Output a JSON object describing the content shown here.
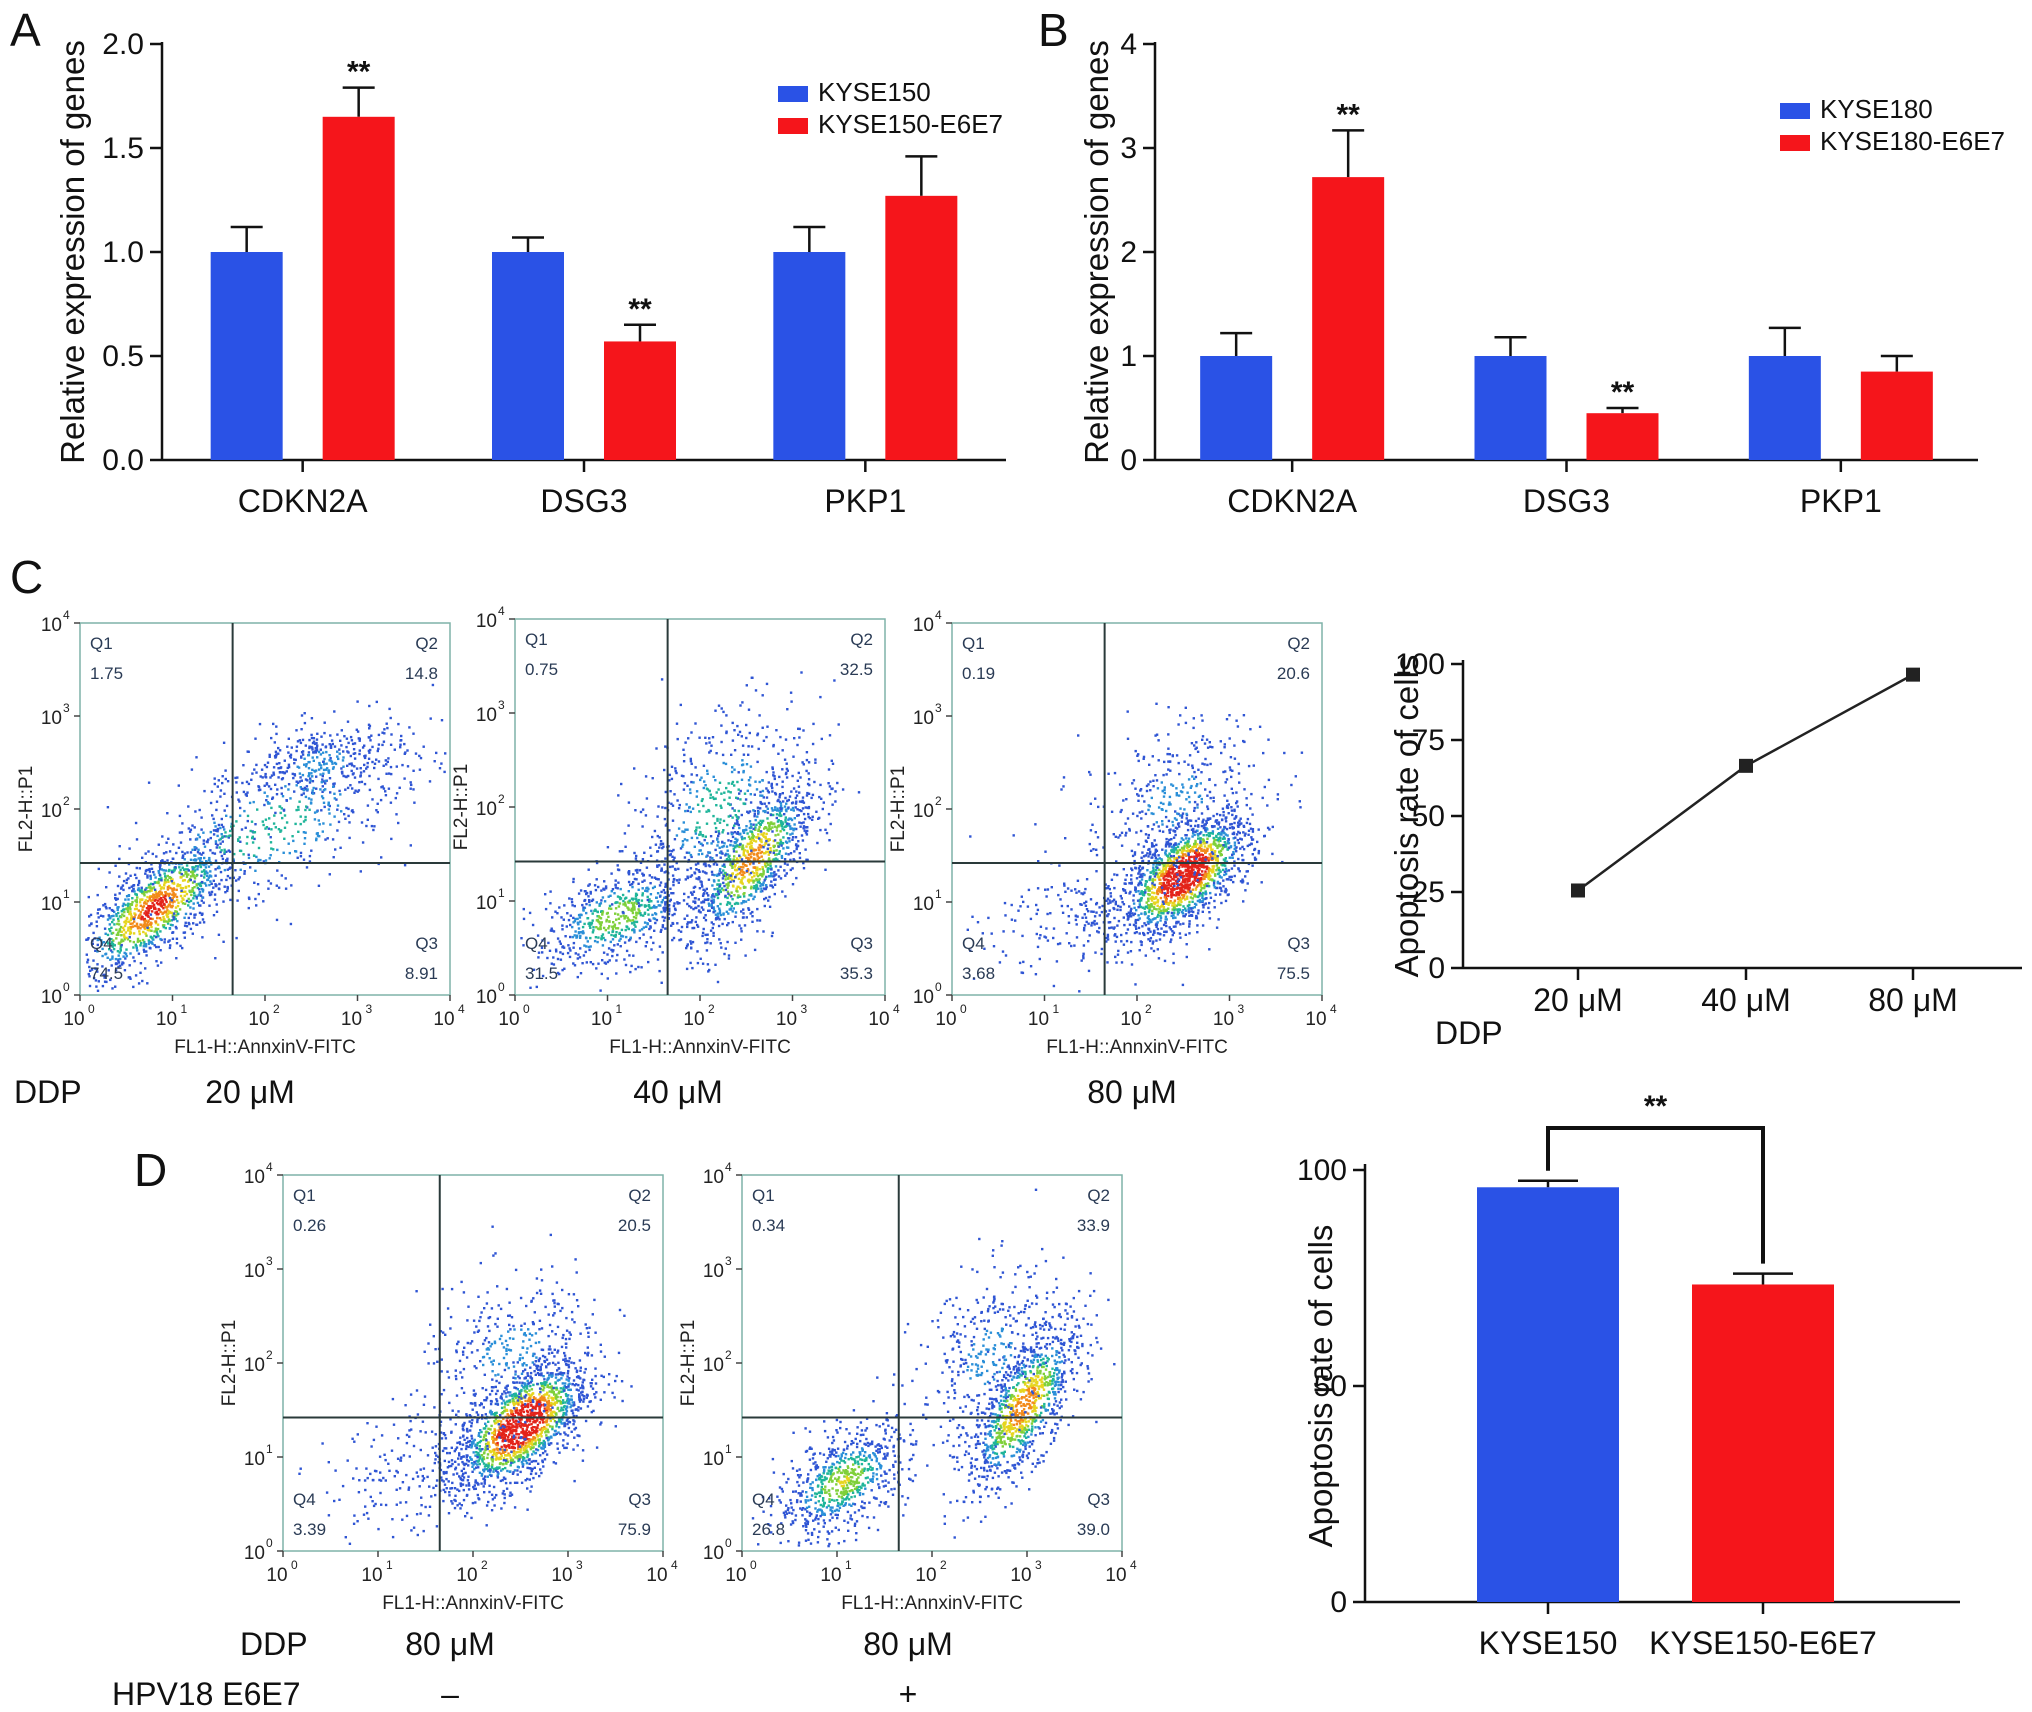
{
  "panels": {
    "A": "A",
    "B": "B",
    "C": "C",
    "D": "D"
  },
  "chart_data": [
    {
      "id": "A",
      "type": "bar",
      "title": "",
      "ylabel": "Relative expression of genes",
      "xlabel": "",
      "ylim": [
        0,
        2.0
      ],
      "yticks": [
        "0.0",
        "0.5",
        "1.0",
        "1.5",
        "2.0"
      ],
      "categories": [
        "CDKN2A",
        "DSG3",
        "PKP1"
      ],
      "legend_position": "top-right",
      "series": [
        {
          "name": "KYSE150",
          "color": "#2a52e6",
          "values": [
            1.0,
            1.0,
            1.0
          ],
          "errors": [
            0.12,
            0.07,
            0.12
          ]
        },
        {
          "name": "KYSE150-E6E7",
          "color": "#f5151b",
          "values": [
            1.65,
            0.57,
            1.27
          ],
          "errors": [
            0.14,
            0.08,
            0.19
          ]
        }
      ],
      "annotations": [
        {
          "series": 1,
          "category": 0,
          "text": "**"
        },
        {
          "series": 1,
          "category": 1,
          "text": "**"
        }
      ]
    },
    {
      "id": "B",
      "type": "bar",
      "title": "",
      "ylabel": "Relative expression of genes",
      "xlabel": "",
      "ylim": [
        0,
        4
      ],
      "yticks": [
        "0",
        "1",
        "2",
        "3",
        "4"
      ],
      "categories": [
        "CDKN2A",
        "DSG3",
        "PKP1"
      ],
      "legend_position": "top-right",
      "series": [
        {
          "name": "KYSE180",
          "color": "#2a52e6",
          "values": [
            1.0,
            1.0,
            1.0
          ],
          "errors": [
            0.22,
            0.18,
            0.27
          ]
        },
        {
          "name": "KYSE180-E6E7",
          "color": "#f5151b",
          "values": [
            2.72,
            0.45,
            0.85
          ],
          "errors": [
            0.45,
            0.05,
            0.15
          ]
        }
      ],
      "annotations": [
        {
          "series": 1,
          "category": 0,
          "text": "**"
        },
        {
          "series": 1,
          "category": 1,
          "text": "**"
        }
      ]
    },
    {
      "id": "C-line",
      "type": "line",
      "title": "",
      "ylabel": "Apoptosis rate of cells",
      "xlabel": "DDP",
      "ylim": [
        0,
        100
      ],
      "yticks": [
        "0",
        "25",
        "50",
        "75",
        "100"
      ],
      "categories": [
        "20 μM",
        "40 μM",
        "80 μM"
      ],
      "series": [
        {
          "name": "Apoptosis",
          "color": "#222222",
          "values": [
            25.5,
            66.5,
            96.5
          ],
          "errors": [
            1.5,
            1.2,
            1.0
          ]
        }
      ]
    },
    {
      "id": "D-bar",
      "type": "bar",
      "title": "",
      "ylabel": "Apoptosis rate of cells",
      "xlabel": "",
      "ylim": [
        0,
        100
      ],
      "yticks": [
        "0",
        "50",
        "100"
      ],
      "categories": [
        "KYSE150",
        "KYSE150-E6E7"
      ],
      "series": [
        {
          "name": "Apoptosis",
          "colors": [
            "#2a52e6",
            "#f5151b"
          ],
          "values": [
            96,
            73.5
          ],
          "errors": [
            1.5,
            2.5
          ]
        }
      ],
      "annotations": [
        {
          "text": "**",
          "between": [
            0,
            1
          ]
        }
      ]
    },
    {
      "id": "C-flow",
      "type": "scatter",
      "xlabel": "FL1-H::AnnxinV-FITC",
      "ylabel": "FL2-H::P1",
      "x_ticks": [
        "10",
        "10",
        "10",
        "10",
        "10"
      ],
      "x_tick_exps": [
        "0",
        "1",
        "2",
        "3",
        "4"
      ],
      "y_ticks": [
        "10",
        "10",
        "10",
        "10",
        "10"
      ],
      "y_tick_exps": [
        "0",
        "1",
        "2",
        "3",
        "4"
      ],
      "plots": [
        {
          "condition": "20 μM",
          "quadrants": {
            "Q1": "1.75",
            "Q2": "14.8",
            "Q3": "8.91",
            "Q4": "74.5"
          },
          "clusters": [
            {
              "x": 0.8,
              "y": 0.95,
              "sx": 0.45,
              "sy": 0.4,
              "n": 1100,
              "r": 0.75
            },
            {
              "x": 2.6,
              "y": 2.5,
              "sx": 0.45,
              "sy": 0.22,
              "n": 350,
              "r": 0.3
            },
            {
              "x": 2.0,
              "y": 1.8,
              "sx": 0.9,
              "sy": 0.55,
              "n": 500,
              "r": 0.6
            }
          ]
        },
        {
          "condition": "40 μM",
          "quadrants": {
            "Q1": "0.75",
            "Q2": "32.5",
            "Q3": "35.3",
            "Q4": "31.5"
          },
          "clusters": [
            {
              "x": 2.55,
              "y": 1.45,
              "sx": 0.35,
              "sy": 0.45,
              "n": 950,
              "r": 0.7
            },
            {
              "x": 1.1,
              "y": 0.85,
              "sx": 0.45,
              "sy": 0.3,
              "n": 650,
              "r": 0.5
            },
            {
              "x": 2.2,
              "y": 2.0,
              "sx": 0.5,
              "sy": 0.6,
              "n": 500,
              "r": 0.4
            }
          ]
        },
        {
          "condition": "80 μM",
          "quadrants": {
            "Q1": "0.19",
            "Q2": "20.6",
            "Q3": "75.5",
            "Q4": "3.68"
          },
          "clusters": [
            {
              "x": 2.5,
              "y": 1.3,
              "sx": 0.35,
              "sy": 0.33,
              "n": 1500,
              "r": 0.6
            },
            {
              "x": 1.6,
              "y": 0.9,
              "sx": 0.6,
              "sy": 0.35,
              "n": 250,
              "r": 0.3
            },
            {
              "x": 2.4,
              "y": 2.1,
              "sx": 0.5,
              "sy": 0.45,
              "n": 350,
              "r": 0.3
            }
          ]
        }
      ]
    },
    {
      "id": "D-flow",
      "type": "scatter",
      "xlabel": "FL1-H::AnnxinV-FITC",
      "ylabel": "FL2-H::P1",
      "plots": [
        {
          "condition": "80 μM",
          "e6e7": "–",
          "quadrants": {
            "Q1": "0.26",
            "Q2": "20.5",
            "Q3": "75.9",
            "Q4": "3.39"
          },
          "clusters": [
            {
              "x": 2.5,
              "y": 1.35,
              "sx": 0.35,
              "sy": 0.35,
              "n": 1500,
              "r": 0.6
            },
            {
              "x": 1.6,
              "y": 0.9,
              "sx": 0.6,
              "sy": 0.35,
              "n": 250,
              "r": 0.3
            },
            {
              "x": 2.4,
              "y": 2.1,
              "sx": 0.5,
              "sy": 0.45,
              "n": 350,
              "r": 0.3
            }
          ]
        },
        {
          "condition": "80 μM",
          "e6e7": "+",
          "quadrants": {
            "Q1": "0.34",
            "Q2": "33.9",
            "Q3": "39.0",
            "Q4": "26.8"
          },
          "clusters": [
            {
              "x": 2.95,
              "y": 1.55,
              "sx": 0.3,
              "sy": 0.45,
              "n": 1000,
              "r": 0.7
            },
            {
              "x": 1.05,
              "y": 0.75,
              "sx": 0.35,
              "sy": 0.3,
              "n": 700,
              "r": 0.5
            },
            {
              "x": 2.6,
              "y": 2.1,
              "sx": 0.4,
              "sy": 0.5,
              "n": 350,
              "r": 0.4
            }
          ]
        }
      ]
    }
  ],
  "row_labels": {
    "ddp": "DDP",
    "hpv": "HPV18 E6E7"
  }
}
